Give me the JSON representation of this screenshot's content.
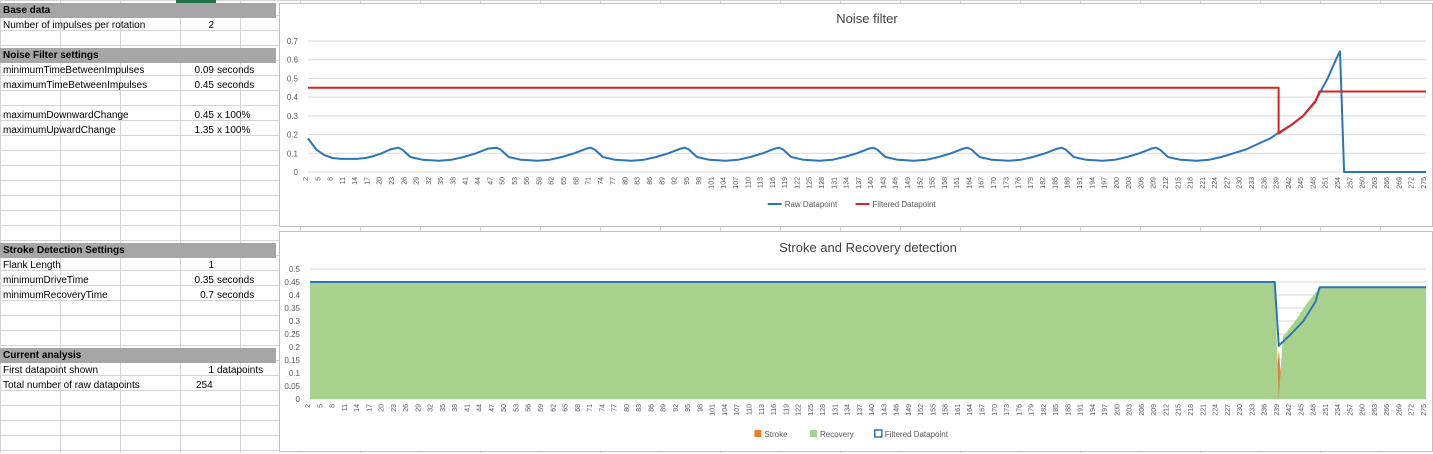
{
  "panel": {
    "base_header": "Base data",
    "impulses_label": "Number of impulses per rotation",
    "impulses_value": "2",
    "noise_header": "Noise Filter settings",
    "min_time_label": "minimumTimeBetweenImpulses",
    "min_time_value": "0.09",
    "min_time_unit": "seconds",
    "max_time_label": "maximumTimeBetweenImpulses",
    "max_time_value": "0.45",
    "max_time_unit": "seconds",
    "max_down_label": "maximumDownwardChange",
    "max_down_value": "0.45",
    "max_down_unit": "x 100%",
    "max_up_label": "maximumUpwardChange",
    "max_up_value": "1.35",
    "max_up_unit": "x 100%",
    "stroke_header": "Stroke Detection Settings",
    "flank_label": "Flank Length",
    "flank_value": "1",
    "min_drive_label": "minimumDriveTime",
    "min_drive_value": "0.35",
    "min_drive_unit": "seconds",
    "min_recovery_label": "minimumRecoveryTime",
    "min_recovery_value": "0.7",
    "min_recovery_unit": "seconds",
    "analysis_header": "Current analysis",
    "first_dp_label": "First datapoint shown",
    "first_dp_value": "1",
    "first_dp_unit": "datapoints",
    "total_dp_label": "Total number of raw datapoints",
    "total_dp_value": "254"
  },
  "chart_data": [
    {
      "type": "line",
      "title": "Noise filter",
      "x_start": 2,
      "x_end": 275,
      "x_label_step": 3,
      "ylim": [
        0,
        0.7
      ],
      "y_ticks": [
        0,
        0.1,
        0.2,
        0.3,
        0.4,
        0.5,
        0.6,
        0.7
      ],
      "y_tick_labels": [
        "0",
        "0.1",
        "0.2",
        "0.3",
        "0.4",
        "0.5",
        "0.6",
        "0.7"
      ],
      "grid": true,
      "legend_position": "bottom",
      "series": [
        {
          "name": "Raw Datapoint",
          "color": "#2e75b6",
          "points": [
            [
              2,
              0.18
            ],
            [
              4,
              0.12
            ],
            [
              6,
              0.09
            ],
            [
              8,
              0.075
            ],
            [
              10,
              0.07
            ],
            [
              14,
              0.07
            ],
            [
              16,
              0.075
            ],
            [
              18,
              0.085
            ],
            [
              20,
              0.1
            ],
            [
              22,
              0.12
            ],
            [
              24,
              0.13
            ],
            [
              25,
              0.12
            ],
            [
              27,
              0.08
            ],
            [
              30,
              0.065
            ],
            [
              34,
              0.06
            ],
            [
              37,
              0.065
            ],
            [
              40,
              0.08
            ],
            [
              43,
              0.1
            ],
            [
              46,
              0.125
            ],
            [
              48,
              0.13
            ],
            [
              49,
              0.12
            ],
            [
              51,
              0.08
            ],
            [
              54,
              0.065
            ],
            [
              58,
              0.06
            ],
            [
              61,
              0.065
            ],
            [
              64,
              0.08
            ],
            [
              67,
              0.1
            ],
            [
              70,
              0.125
            ],
            [
              71,
              0.13
            ],
            [
              72,
              0.12
            ],
            [
              74,
              0.08
            ],
            [
              77,
              0.065
            ],
            [
              81,
              0.06
            ],
            [
              84,
              0.065
            ],
            [
              87,
              0.08
            ],
            [
              90,
              0.1
            ],
            [
              93,
              0.125
            ],
            [
              94,
              0.13
            ],
            [
              95,
              0.12
            ],
            [
              97,
              0.08
            ],
            [
              100,
              0.065
            ],
            [
              104,
              0.06
            ],
            [
              107,
              0.065
            ],
            [
              110,
              0.08
            ],
            [
              113,
              0.1
            ],
            [
              116,
              0.125
            ],
            [
              117,
              0.13
            ],
            [
              118,
              0.12
            ],
            [
              120,
              0.08
            ],
            [
              123,
              0.065
            ],
            [
              127,
              0.06
            ],
            [
              130,
              0.065
            ],
            [
              133,
              0.08
            ],
            [
              136,
              0.1
            ],
            [
              139,
              0.125
            ],
            [
              140,
              0.13
            ],
            [
              141,
              0.12
            ],
            [
              143,
              0.08
            ],
            [
              146,
              0.065
            ],
            [
              150,
              0.06
            ],
            [
              153,
              0.065
            ],
            [
              156,
              0.08
            ],
            [
              159,
              0.1
            ],
            [
              162,
              0.125
            ],
            [
              163,
              0.13
            ],
            [
              164,
              0.12
            ],
            [
              166,
              0.08
            ],
            [
              169,
              0.065
            ],
            [
              173,
              0.06
            ],
            [
              176,
              0.065
            ],
            [
              179,
              0.08
            ],
            [
              182,
              0.1
            ],
            [
              185,
              0.125
            ],
            [
              186,
              0.13
            ],
            [
              187,
              0.12
            ],
            [
              189,
              0.08
            ],
            [
              192,
              0.065
            ],
            [
              196,
              0.06
            ],
            [
              199,
              0.065
            ],
            [
              202,
              0.08
            ],
            [
              205,
              0.1
            ],
            [
              208,
              0.125
            ],
            [
              209,
              0.13
            ],
            [
              210,
              0.12
            ],
            [
              212,
              0.08
            ],
            [
              215,
              0.065
            ],
            [
              219,
              0.06
            ],
            [
              222,
              0.065
            ],
            [
              225,
              0.08
            ],
            [
              228,
              0.1
            ],
            [
              231,
              0.12
            ],
            [
              234,
              0.15
            ],
            [
              237,
              0.18
            ],
            [
              239,
              0.21
            ],
            [
              242,
              0.25
            ],
            [
              245,
              0.3
            ],
            [
              248,
              0.38
            ],
            [
              251,
              0.5
            ],
            [
              253,
              0.6
            ],
            [
              254,
              0.645
            ],
            [
              255,
              0.0
            ],
            [
              275,
              0.0
            ]
          ]
        },
        {
          "name": "Filtered Datapoint",
          "color": "#e02020",
          "points": [
            [
              2,
              0.45
            ],
            [
              239,
              0.45
            ],
            [
              239,
              0.205
            ],
            [
              242,
              0.25
            ],
            [
              245,
              0.3
            ],
            [
              248,
              0.375
            ],
            [
              249,
              0.43
            ],
            [
              275,
              0.43
            ]
          ]
        }
      ]
    },
    {
      "type": "area",
      "title": "Stroke and Recovery detection",
      "x_start": 2,
      "x_end": 275,
      "x_label_step": 3,
      "ylim": [
        0,
        0.5
      ],
      "y_ticks": [
        0,
        0.05,
        0.1,
        0.15,
        0.2,
        0.25,
        0.3,
        0.35,
        0.4,
        0.45,
        0.5
      ],
      "y_tick_labels": [
        "0",
        "0.05",
        "0.1",
        "0.15",
        "0.2",
        "0.25",
        "0.3",
        "0.35",
        "0.4",
        "0.45",
        "0.5"
      ],
      "grid": true,
      "legend_position": "bottom",
      "series": [
        {
          "name": "Stroke",
          "color": "#ed7d31",
          "points": [
            [
              238,
              0
            ],
            [
              239,
              0.19
            ],
            [
              240,
              0
            ]
          ]
        },
        {
          "name": "Recovery",
          "color": "#a9d18e",
          "points": [
            [
              2,
              0.45
            ],
            [
              238,
              0.45
            ],
            [
              239,
              0.0
            ],
            [
              240,
              0.24
            ],
            [
              243,
              0.3
            ],
            [
              246,
              0.37
            ],
            [
              249,
              0.43
            ],
            [
              275,
              0.43
            ]
          ]
        },
        {
          "name": "Filtered Datapoint",
          "color": "#2e75b6",
          "points": [
            [
              2,
              0.45
            ],
            [
              238,
              0.45
            ],
            [
              239,
              0.205
            ],
            [
              242,
              0.25
            ],
            [
              245,
              0.3
            ],
            [
              248,
              0.375
            ],
            [
              249,
              0.43
            ],
            [
              275,
              0.43
            ]
          ]
        }
      ]
    }
  ]
}
